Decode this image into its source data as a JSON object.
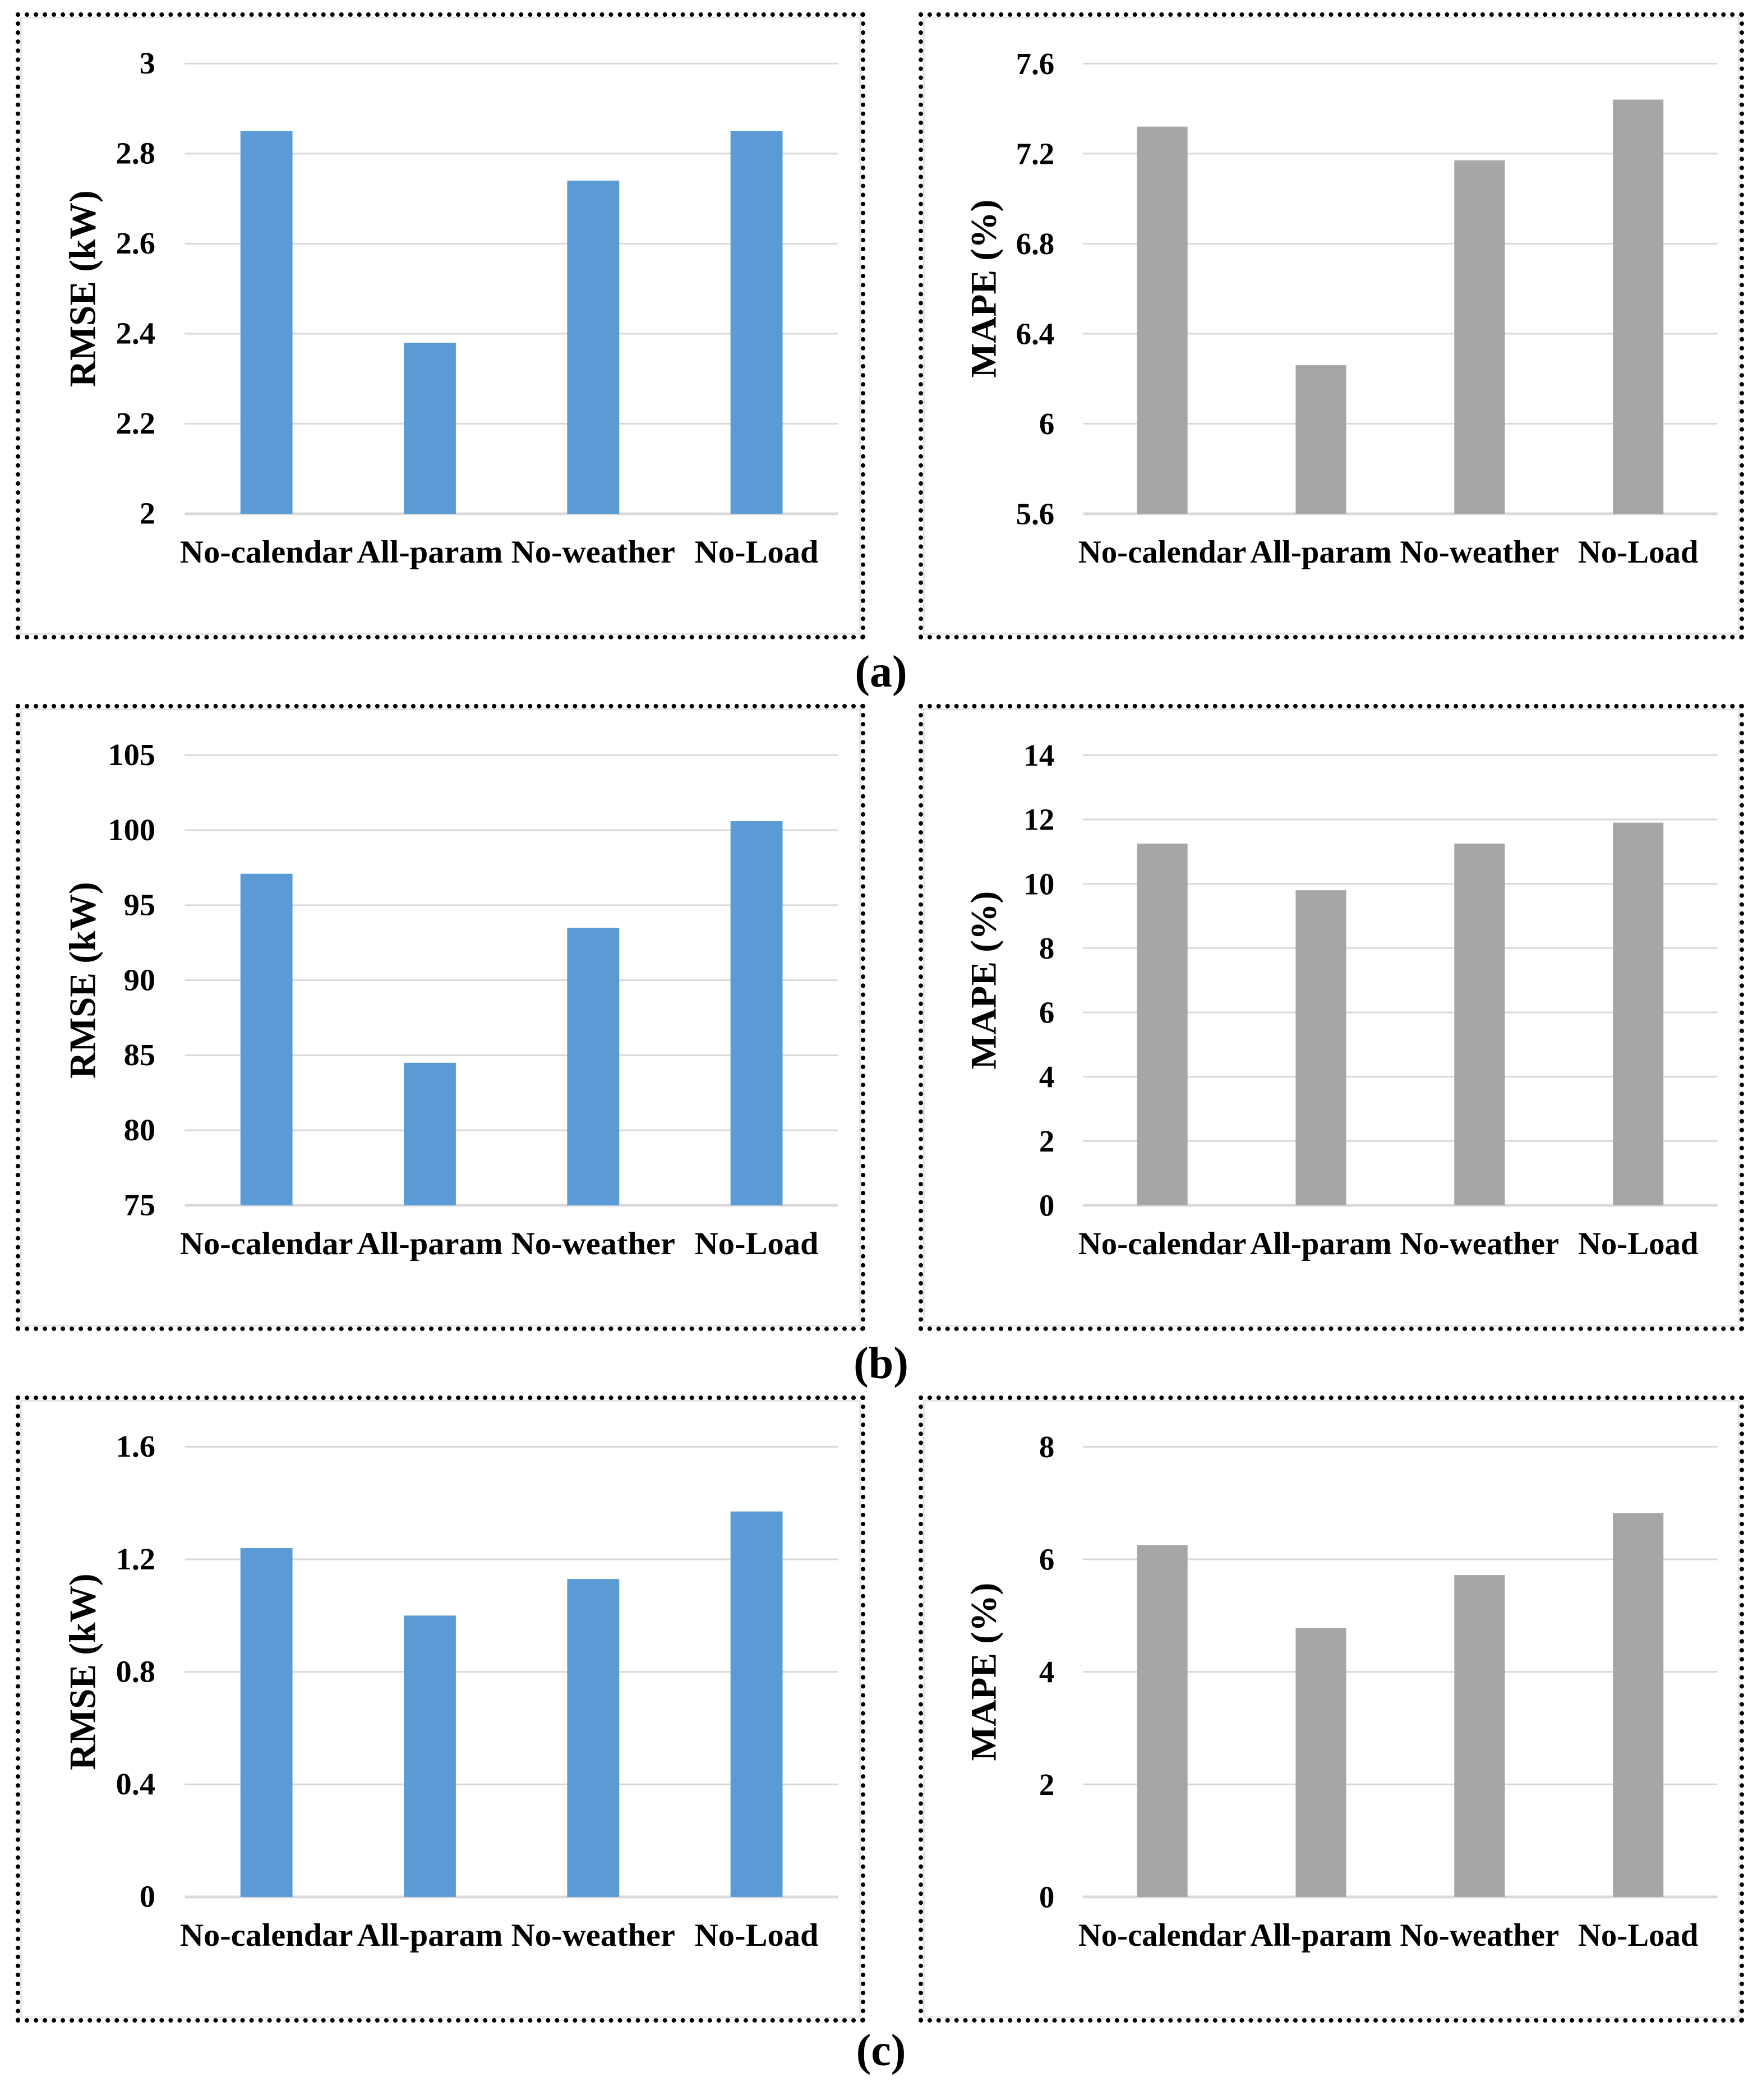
{
  "figure": {
    "captions": {
      "a": "(a)",
      "b": "(b)",
      "c": "(c)"
    },
    "colors": {
      "rmse_bar": "#5B9BD5",
      "mape_bar": "#A6A6A6",
      "gridline": "#D9D9D9",
      "baseline": "#D9D9D9",
      "text": "#000000",
      "panel_border": "#000000",
      "background": "#FFFFFF"
    }
  },
  "chart_data": [
    {
      "id": "a-rmse",
      "panel": "a",
      "type": "bar",
      "ylabel": "RMSE (kW)",
      "categories": [
        "No-calendar",
        "All-param",
        "No-weather",
        "No-Load"
      ],
      "values": [
        2.85,
        2.38,
        2.74,
        2.85
      ],
      "ylim": [
        2,
        3
      ],
      "yticks": [
        "2",
        "2.2",
        "2.4",
        "2.6",
        "2.8",
        "3"
      ],
      "grid": true,
      "legend": false,
      "bar_color": "#5B9BD5"
    },
    {
      "id": "a-mape",
      "panel": "a",
      "type": "bar",
      "ylabel": "MAPE (%)",
      "categories": [
        "No-calendar",
        "All-param",
        "No-weather",
        "No-Load"
      ],
      "values": [
        7.32,
        6.26,
        7.17,
        7.44
      ],
      "ylim": [
        5.6,
        7.6
      ],
      "yticks": [
        "5.6",
        "6",
        "6.4",
        "6.8",
        "7.2",
        "7.6"
      ],
      "grid": true,
      "legend": false,
      "bar_color": "#A6A6A6"
    },
    {
      "id": "b-rmse",
      "panel": "b",
      "type": "bar",
      "ylabel": "RMSE (kW)",
      "categories": [
        "No-calendar",
        "All-param",
        "No-weather",
        "No-Load"
      ],
      "values": [
        97.1,
        84.5,
        93.5,
        100.6
      ],
      "ylim": [
        75,
        105
      ],
      "yticks": [
        "75",
        "80",
        "85",
        "90",
        "95",
        "100",
        "105"
      ],
      "grid": true,
      "legend": false,
      "bar_color": "#5B9BD5"
    },
    {
      "id": "b-mape",
      "panel": "b",
      "type": "bar",
      "ylabel": "MAPE (%)",
      "categories": [
        "No-calendar",
        "All-param",
        "No-weather",
        "No-Load"
      ],
      "values": [
        11.25,
        9.8,
        11.25,
        11.9
      ],
      "ylim": [
        0,
        14
      ],
      "yticks": [
        "0",
        "2",
        "4",
        "6",
        "8",
        "10",
        "12",
        "14"
      ],
      "grid": true,
      "legend": false,
      "bar_color": "#A6A6A6"
    },
    {
      "id": "c-rmse",
      "panel": "c",
      "type": "bar",
      "ylabel": "RMSE (kW)",
      "categories": [
        "No-calendar",
        "All-param",
        "No-weather",
        "No-Load"
      ],
      "values": [
        1.24,
        1.0,
        1.13,
        1.37
      ],
      "ylim": [
        0,
        1.6
      ],
      "yticks": [
        "0",
        "0.4",
        "0.8",
        "1.2",
        "1.6"
      ],
      "grid": true,
      "legend": false,
      "bar_color": "#5B9BD5"
    },
    {
      "id": "c-mape",
      "panel": "c",
      "type": "bar",
      "ylabel": "MAPE (%)",
      "categories": [
        "No-calendar",
        "All-param",
        "No-weather",
        "No-Load"
      ],
      "values": [
        6.25,
        4.78,
        5.72,
        6.82
      ],
      "ylim": [
        0,
        8
      ],
      "yticks": [
        "0",
        "2",
        "4",
        "6",
        "8"
      ],
      "grid": true,
      "legend": false,
      "bar_color": "#A6A6A6"
    }
  ]
}
